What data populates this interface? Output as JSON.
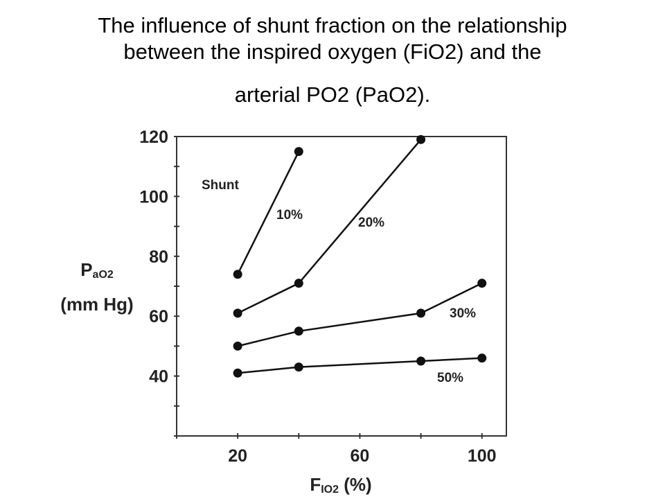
{
  "title_lines": [
    "The influence of shunt fraction on the relationship",
    "between the inspired oxygen (FiO2) and the",
    "arterial PO2 (PaO2)."
  ],
  "chart_data": {
    "type": "line",
    "title": "The influence of shunt fraction on the relationship between the inspired oxygen (FiO2) and the arterial PO2 (PaO2).",
    "xlabel": {
      "main": "F",
      "sub": "IO2",
      "unit": " (%)"
    },
    "ylabel": {
      "main": "P",
      "sub": "aO2",
      "unit": "(mm Hg)"
    },
    "xlim": [
      0,
      108
    ],
    "ylim": [
      20,
      120
    ],
    "x_ticks": [
      20,
      60,
      100
    ],
    "y_ticks": [
      40,
      60,
      80,
      100,
      120
    ],
    "grid": false,
    "legend_title": "Shunt",
    "series": [
      {
        "name": "10%",
        "x": [
          20,
          40
        ],
        "y": [
          74,
          115
        ]
      },
      {
        "name": "20%",
        "x": [
          20,
          40,
          80
        ],
        "y": [
          61,
          71,
          119
        ]
      },
      {
        "name": "30%",
        "x": [
          20,
          40,
          80,
          100
        ],
        "y": [
          50,
          55,
          61,
          71
        ]
      },
      {
        "name": "50%",
        "x": [
          20,
          40,
          80,
          100
        ],
        "y": [
          41,
          43,
          45,
          46
        ]
      }
    ]
  }
}
